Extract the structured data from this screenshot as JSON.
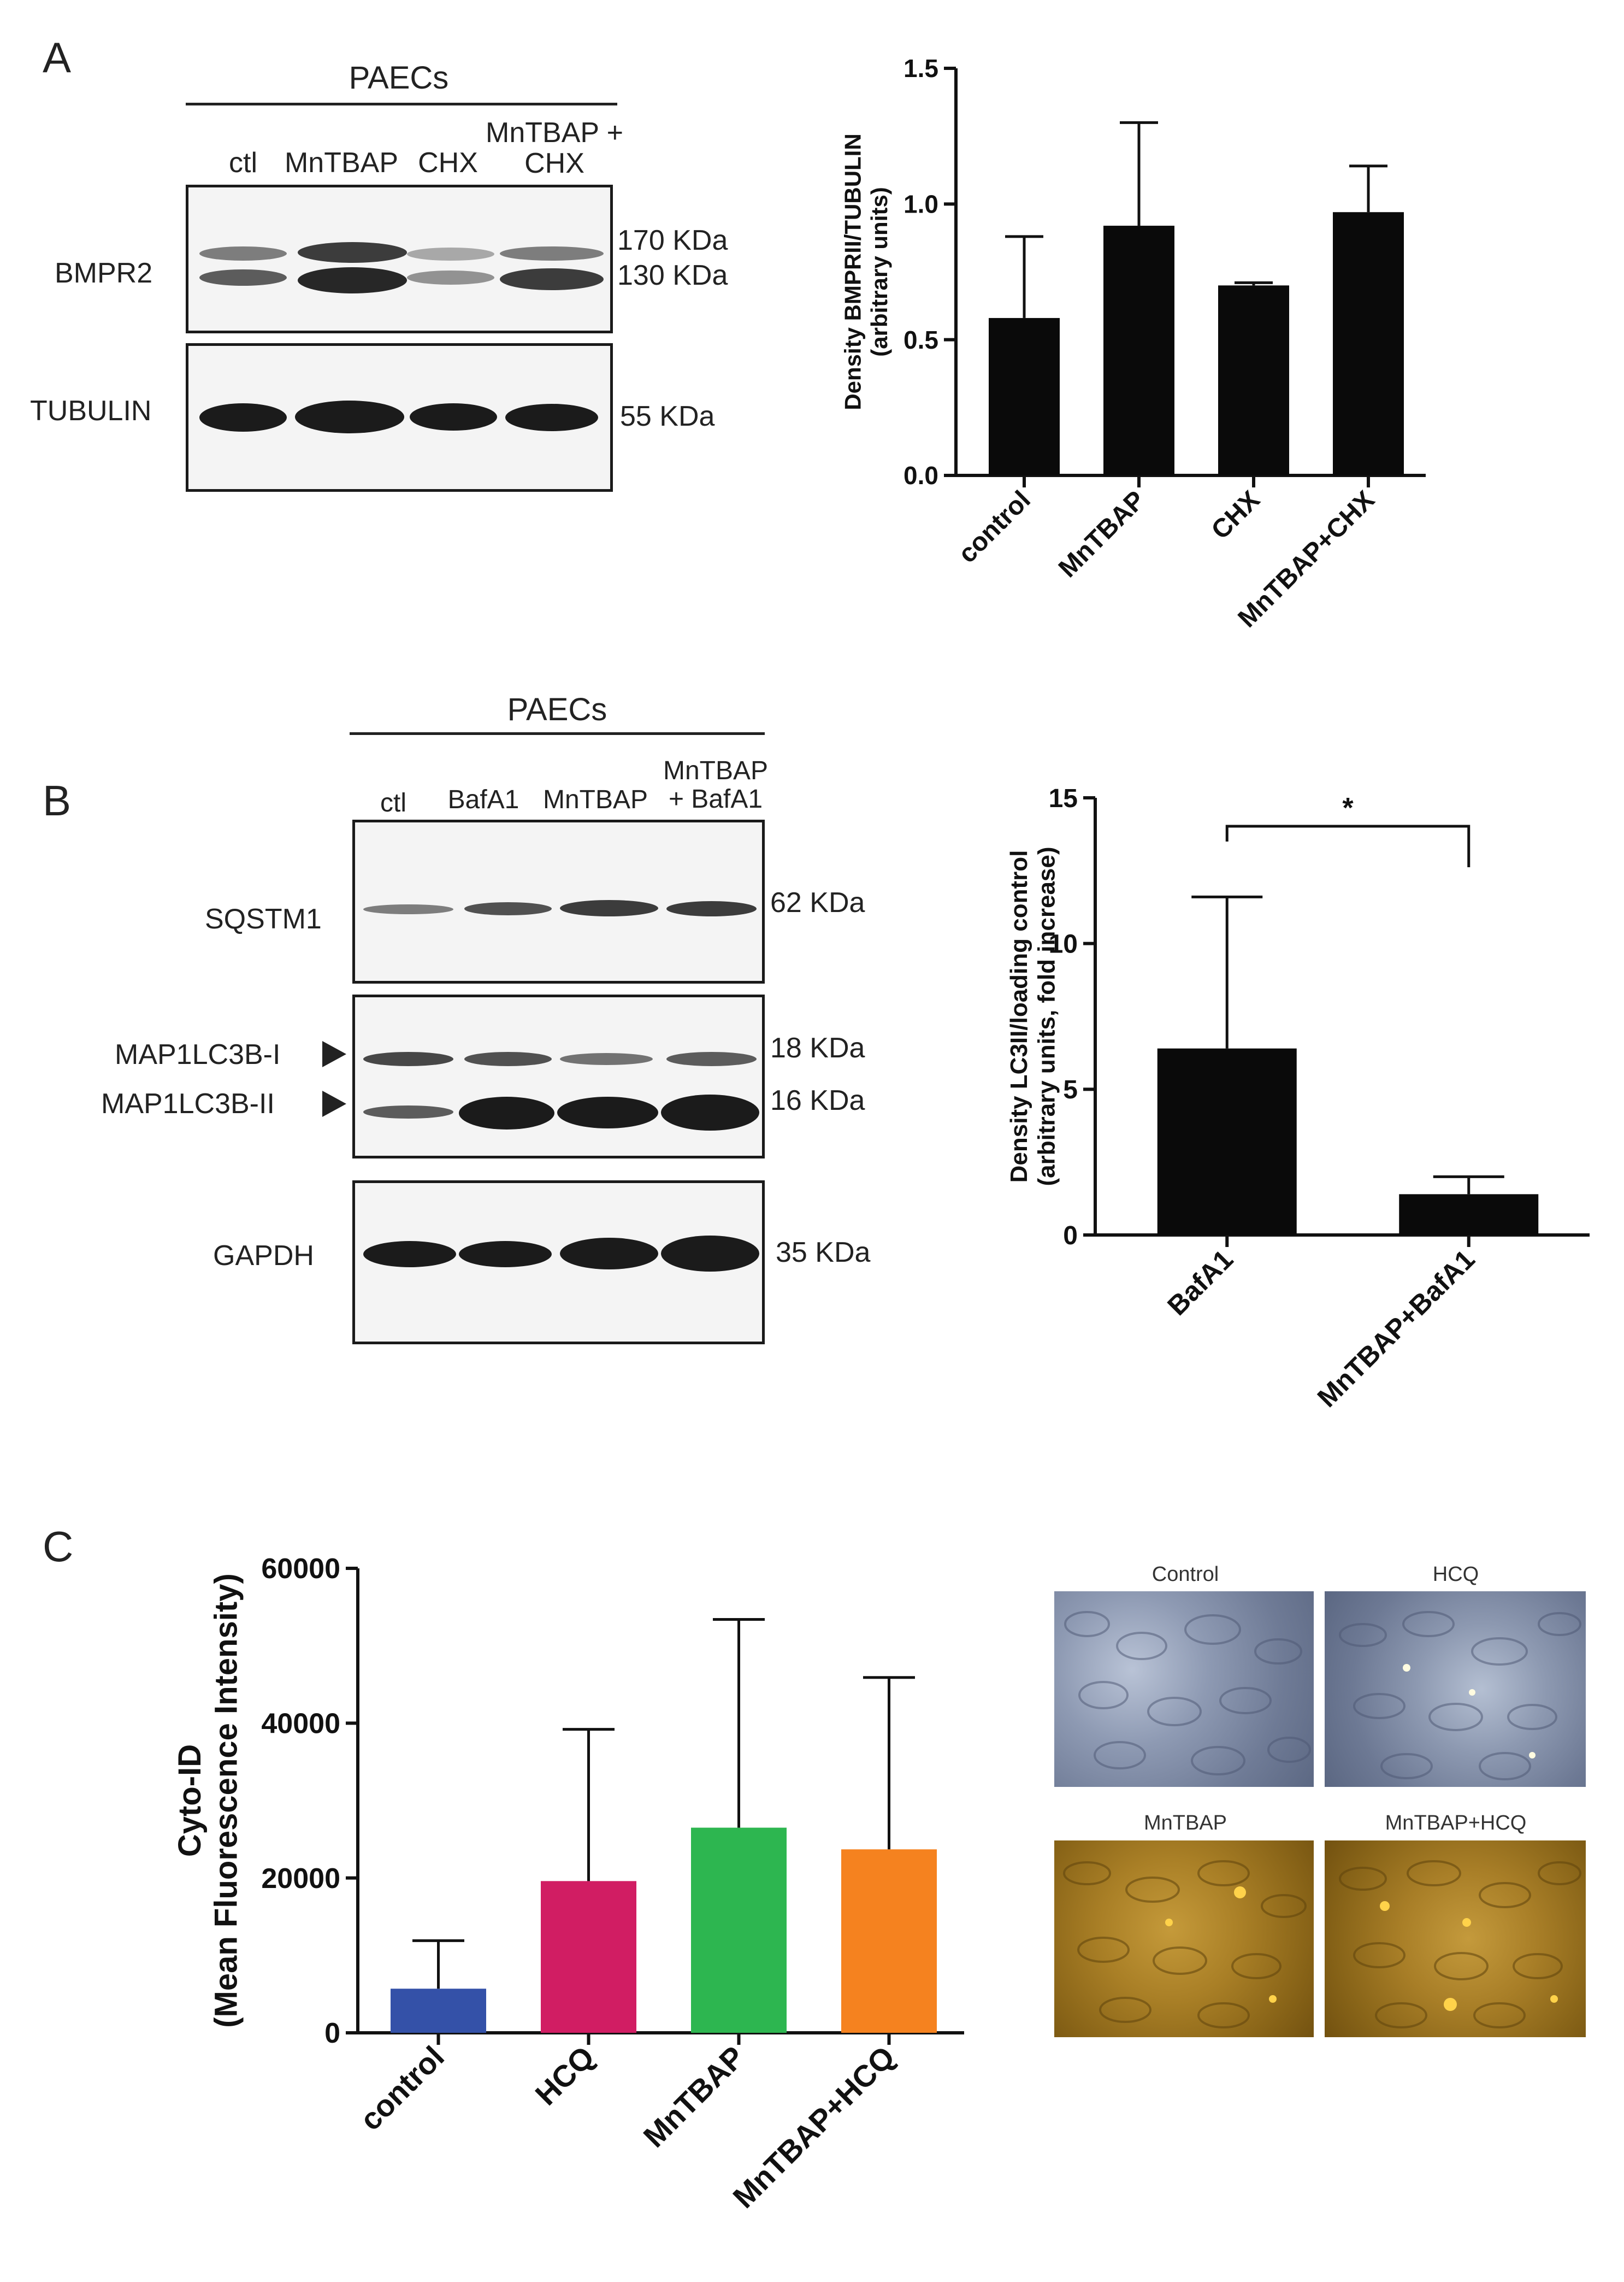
{
  "panelA": {
    "letter": "A",
    "group_label": "PAECs",
    "lanes": [
      "ctl",
      "MnTBAP",
      "CHX",
      "MnTBAP +\nCHX"
    ],
    "blot1_label": "BMPR2",
    "blot1_sizes": [
      "170 KDa",
      "130 KDa"
    ],
    "blot2_label": "TUBULIN",
    "blot2_size": "55 KDa"
  },
  "panelB": {
    "letter": "B",
    "group_label": "PAECs",
    "lanes": [
      "ctl",
      "BafA1",
      "MnTBAP",
      "MnTBAP\n+ BafA1"
    ],
    "blot1_label": "SQSTM1",
    "blot1_size": "62 KDa",
    "blot2_labels": [
      "MAP1LC3B-I",
      "MAP1LC3B-II"
    ],
    "blot2_sizes": [
      "18 KDa",
      "16 KDa"
    ],
    "blot3_label": "GAPDH",
    "blot3_size": "35 KDa"
  },
  "panelC": {
    "letter": "C",
    "micro_titles": [
      "Control",
      "HCQ",
      "MnTBAP",
      "MnTBAP+HCQ"
    ]
  },
  "chart_data": [
    {
      "type": "bar",
      "panel": "A",
      "categories": [
        "control",
        "MnTBAP",
        "CHX",
        "MnTBAP+CHX"
      ],
      "values": [
        0.58,
        0.92,
        0.7,
        0.97
      ],
      "errors": [
        0.3,
        0.38,
        0.01,
        0.17
      ],
      "ylabel": "Density BMPRII/TUBULIN\n(arbitrary units)",
      "ylim": [
        0,
        1.5
      ],
      "yticks": [
        "0.0",
        "0.5",
        "1.0",
        "1.5"
      ],
      "bar_color": "#0a0a0a",
      "grid": false
    },
    {
      "type": "bar",
      "panel": "B",
      "categories": [
        "BafA1",
        "MnTBAP+BafA1"
      ],
      "values": [
        6.4,
        1.4
      ],
      "errors": [
        5.2,
        0.6
      ],
      "ylabel": "Density LC3II/loading control\n(arbitrary units, fold increase)",
      "ylim": [
        0,
        15
      ],
      "yticks": [
        "0",
        "5",
        "10",
        "15"
      ],
      "annotation": "*",
      "bar_color": "#0a0a0a",
      "grid": false
    },
    {
      "type": "bar",
      "panel": "C",
      "categories": [
        "control",
        "HCQ",
        "MnTBAP",
        "MnTBAP+HCQ"
      ],
      "values": [
        5700,
        19600,
        26500,
        23700
      ],
      "errors": [
        6200,
        19600,
        26900,
        22200
      ],
      "ylabel": "Cyto-ID\n(Mean Fluorescence Intensity)",
      "ylim": [
        0,
        60000
      ],
      "yticks": [
        "0",
        "20000",
        "40000",
        "60000"
      ],
      "colors": [
        "#3451a8",
        "#d11d63",
        "#2db650",
        "#f5821f"
      ],
      "grid": false
    }
  ]
}
